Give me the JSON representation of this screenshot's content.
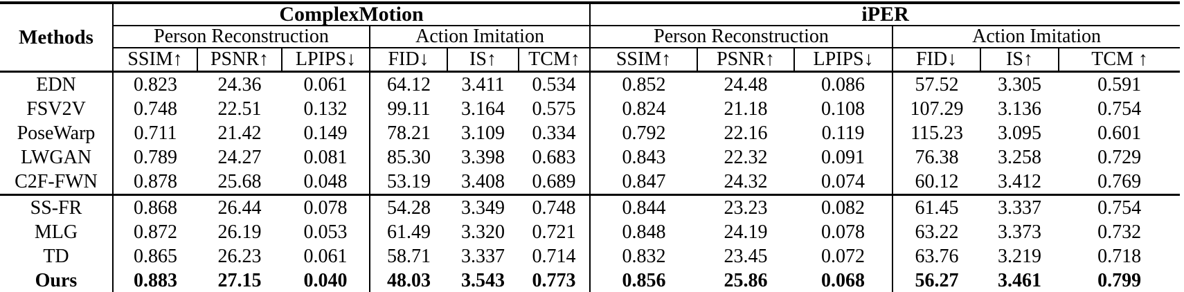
{
  "table": {
    "methods_header": "Methods",
    "datasets": [
      {
        "name": "ComplexMotion",
        "groups": [
          {
            "name": "Person Reconstruction",
            "metrics": [
              "SSIM↑",
              "PSNR↑",
              "LPIPS↓"
            ]
          },
          {
            "name": "Action Imitation",
            "metrics": [
              "FID↓",
              "IS↑",
              "TCM↑"
            ]
          }
        ]
      },
      {
        "name": "iPER",
        "groups": [
          {
            "name": "Person Reconstruction",
            "metrics": [
              "SSIM↑",
              "PSNR↑",
              "LPIPS↓"
            ]
          },
          {
            "name": "Action Imitation",
            "metrics": [
              "FID↓",
              "IS↑",
              "TCM ↑"
            ]
          }
        ]
      }
    ],
    "rows": [
      {
        "method": "EDN",
        "bold": false,
        "section": 1,
        "values": [
          "0.823",
          "24.36",
          "0.061",
          "64.12",
          "3.411",
          "0.534",
          "0.852",
          "24.48",
          "0.086",
          "57.52",
          "3.305",
          "0.591"
        ]
      },
      {
        "method": "FSV2V",
        "bold": false,
        "section": 1,
        "values": [
          "0.748",
          "22.51",
          "0.132",
          "99.11",
          "3.164",
          "0.575",
          "0.824",
          "21.18",
          "0.108",
          "107.29",
          "3.136",
          "0.754"
        ]
      },
      {
        "method": "PoseWarp",
        "bold": false,
        "section": 1,
        "values": [
          "0.711",
          "21.42",
          "0.149",
          "78.21",
          "3.109",
          "0.334",
          "0.792",
          "22.16",
          "0.119",
          "115.23",
          "3.095",
          "0.601"
        ]
      },
      {
        "method": "LWGAN",
        "bold": false,
        "section": 1,
        "values": [
          "0.789",
          "24.27",
          "0.081",
          "85.30",
          "3.398",
          "0.683",
          "0.843",
          "22.32",
          "0.091",
          "76.38",
          "3.258",
          "0.729"
        ]
      },
      {
        "method": "C2F-FWN",
        "bold": false,
        "section": 1,
        "values": [
          "0.878",
          "25.68",
          "0.048",
          "53.19",
          "3.408",
          "0.689",
          "0.847",
          "24.32",
          "0.074",
          "60.12",
          "3.412",
          "0.769"
        ]
      },
      {
        "method": "SS-FR",
        "bold": false,
        "section": 2,
        "values": [
          "0.868",
          "26.44",
          "0.078",
          "54.28",
          "3.349",
          "0.748",
          "0.844",
          "23.23",
          "0.082",
          "61.45",
          "3.337",
          "0.754"
        ]
      },
      {
        "method": "MLG",
        "bold": false,
        "section": 2,
        "values": [
          "0.872",
          "26.19",
          "0.053",
          "61.49",
          "3.320",
          "0.721",
          "0.848",
          "24.19",
          "0.078",
          "63.22",
          "3.373",
          "0.732"
        ]
      },
      {
        "method": "TD",
        "bold": false,
        "section": 2,
        "values": [
          "0.865",
          "26.23",
          "0.061",
          "58.71",
          "3.337",
          "0.714",
          "0.832",
          "23.45",
          "0.072",
          "63.76",
          "3.219",
          "0.718"
        ]
      },
      {
        "method": "Ours",
        "bold": true,
        "section": 2,
        "values": [
          "0.883",
          "27.15",
          "0.040",
          "48.03",
          "3.543",
          "0.773",
          "0.856",
          "25.86",
          "0.068",
          "56.27",
          "3.461",
          "0.799"
        ]
      }
    ],
    "value_separator_columns": [
      2,
      5,
      8
    ]
  }
}
